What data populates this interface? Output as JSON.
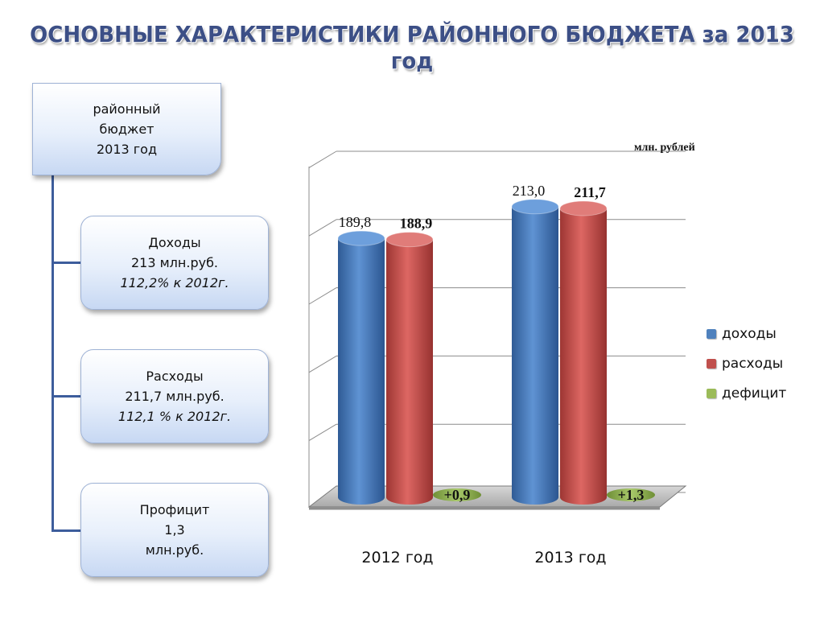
{
  "title": "ОСНОВНЫЕ ХАРАКТЕРИСТИКИ РАЙОННОГО БЮДЖЕТА за 2013 год",
  "tree": {
    "root": {
      "lines": [
        "районный",
        "бюджет",
        "2013 год"
      ]
    },
    "children": [
      {
        "line1": "Доходы",
        "line2": "213 млн.руб.",
        "line3": "112,2% к 2012г."
      },
      {
        "line1": "Расходы",
        "line2": "211,7 млн.руб.",
        "line3": "112,1 % к 2012г."
      },
      {
        "line1": "Профицит",
        "line2": "1,3",
        "line3": "млн.руб."
      }
    ]
  },
  "chart_data": {
    "type": "bar",
    "unit_label": "млн. рублей",
    "categories": [
      "2012 год",
      "2013 год"
    ],
    "series": [
      {
        "name": "доходы",
        "values": [
          189.8,
          213.0
        ],
        "labels": [
          "189,8",
          "213,0"
        ],
        "color": "#4f81bd"
      },
      {
        "name": "расходы",
        "values": [
          188.9,
          211.7
        ],
        "labels": [
          "188,9",
          "211,7"
        ],
        "color": "#c0504d"
      },
      {
        "name": "дефицит",
        "values": [
          0.9,
          1.3
        ],
        "labels": [
          "+0,9",
          "+1,3"
        ],
        "color": "#9bbb59"
      }
    ],
    "ylim": [
      0,
      250
    ],
    "grid": true,
    "legend_position": "right"
  }
}
